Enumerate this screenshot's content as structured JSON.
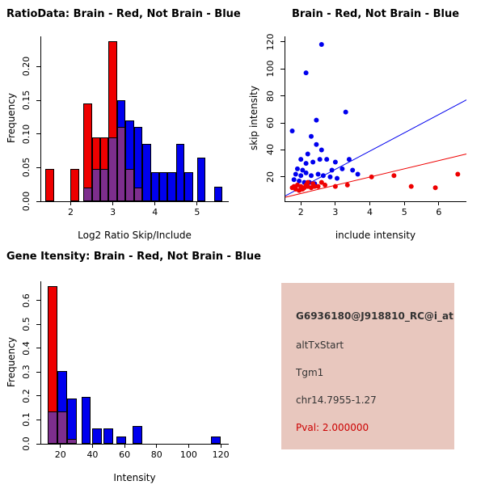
{
  "colors": {
    "red": "#EE0000",
    "blue": "#0000EE",
    "purple": "#7D2E8D",
    "axis": "#000000",
    "info_bg": "#E8C7BE",
    "info_text": "#333333",
    "pval_red": "#CC0000"
  },
  "chart_data": [
    {
      "id": "ratio-histogram",
      "type": "bar",
      "title": "RatioData: Brain - Red, Not Brain - Blue",
      "xlabel": "Log2 Ratio Skip/Include",
      "ylabel": "Frequency",
      "xlim": [
        1.3,
        5.75
      ],
      "ylim": [
        0,
        0.245
      ],
      "grid": false,
      "xticks": [
        2,
        3,
        4,
        5
      ],
      "yticks": [
        0.0,
        0.05,
        0.1,
        0.15,
        0.2
      ],
      "ytick_labels": [
        "0.00",
        "0.05",
        "0.10",
        "0.15",
        "0.20"
      ],
      "series": [
        {
          "name": "Brain",
          "color": "red"
        },
        {
          "name": "Not Brain",
          "color": "blue"
        },
        {
          "name": "Overlap",
          "color": "purple"
        }
      ],
      "bins": [
        {
          "x0": 1.4,
          "x1": 1.6,
          "red": 0.048,
          "blue": 0
        },
        {
          "x0": 2.0,
          "x1": 2.2,
          "red": 0.048,
          "blue": 0
        },
        {
          "x0": 2.3,
          "x1": 2.5,
          "red": 0.145,
          "blue": 0.02
        },
        {
          "x0": 2.5,
          "x1": 2.7,
          "red": 0.095,
          "blue": 0.048
        },
        {
          "x0": 2.7,
          "x1": 2.9,
          "red": 0.095,
          "blue": 0.048
        },
        {
          "x0": 2.9,
          "x1": 3.1,
          "red": 0.238,
          "blue": 0.095
        },
        {
          "x0": 3.1,
          "x1": 3.3,
          "red": 0.11,
          "blue": 0.15
        },
        {
          "x0": 3.3,
          "x1": 3.5,
          "red": 0.048,
          "blue": 0.12
        },
        {
          "x0": 3.5,
          "x1": 3.7,
          "red": 0.02,
          "blue": 0.11
        },
        {
          "x0": 3.7,
          "x1": 3.9,
          "red": 0,
          "blue": 0.085
        },
        {
          "x0": 3.9,
          "x1": 4.1,
          "red": 0,
          "blue": 0.043
        },
        {
          "x0": 4.1,
          "x1": 4.3,
          "red": 0,
          "blue": 0.043
        },
        {
          "x0": 4.3,
          "x1": 4.5,
          "red": 0,
          "blue": 0.043
        },
        {
          "x0": 4.5,
          "x1": 4.7,
          "red": 0,
          "blue": 0.085
        },
        {
          "x0": 4.7,
          "x1": 4.9,
          "red": 0,
          "blue": 0.043
        },
        {
          "x0": 5.0,
          "x1": 5.2,
          "red": 0,
          "blue": 0.065
        },
        {
          "x0": 5.4,
          "x1": 5.6,
          "red": 0,
          "blue": 0.022
        }
      ]
    },
    {
      "id": "intensity-scatter",
      "type": "scatter",
      "title": "Brain - Red, Not Brain - Blue",
      "xlabel": "include intensity",
      "ylabel": "skip intensity",
      "xlim": [
        1.55,
        6.8
      ],
      "ylim": [
        2,
        124
      ],
      "grid": false,
      "xticks": [
        2,
        3,
        4,
        5,
        6
      ],
      "yticks": [
        20,
        40,
        60,
        80,
        100,
        120
      ],
      "series": [
        {
          "name": "Not Brain",
          "color": "blue",
          "points": [
            [
              2.6,
              118
            ],
            [
              2.15,
              97
            ],
            [
              3.3,
              68
            ],
            [
              2.45,
              62
            ],
            [
              1.75,
              54
            ],
            [
              2.3,
              50
            ],
            [
              2.45,
              44
            ],
            [
              2.6,
              40
            ],
            [
              2.2,
              37
            ],
            [
              3.4,
              33
            ],
            [
              2.0,
              33
            ],
            [
              2.55,
              33
            ],
            [
              2.75,
              33
            ],
            [
              2.15,
              30
            ],
            [
              2.35,
              31
            ],
            [
              3.0,
              31
            ],
            [
              3.2,
              26
            ],
            [
              2.9,
              25
            ],
            [
              1.9,
              26
            ],
            [
              2.05,
              25
            ],
            [
              3.5,
              25
            ],
            [
              1.85,
              22
            ],
            [
              2.0,
              21
            ],
            [
              2.15,
              23
            ],
            [
              2.3,
              21
            ],
            [
              2.5,
              22
            ],
            [
              2.65,
              21
            ],
            [
              3.65,
              22
            ],
            [
              2.85,
              20
            ],
            [
              3.05,
              19
            ],
            [
              1.8,
              18
            ],
            [
              1.95,
              17
            ],
            [
              2.1,
              16
            ],
            [
              2.25,
              16
            ],
            [
              2.4,
              15
            ]
          ]
        },
        {
          "name": "Brain",
          "color": "red",
          "points": [
            [
              1.75,
              12
            ],
            [
              1.8,
              13
            ],
            [
              1.85,
              11
            ],
            [
              1.9,
              14
            ],
            [
              1.95,
              10
            ],
            [
              2.0,
              13
            ],
            [
              2.0,
              11
            ],
            [
              2.05,
              11
            ],
            [
              2.1,
              12
            ],
            [
              2.15,
              14
            ],
            [
              2.2,
              13
            ],
            [
              2.2,
              16
            ],
            [
              2.3,
              12
            ],
            [
              2.35,
              15
            ],
            [
              2.4,
              13
            ],
            [
              2.5,
              13
            ],
            [
              2.6,
              16
            ],
            [
              2.7,
              14
            ],
            [
              3.0,
              13
            ],
            [
              3.35,
              14
            ],
            [
              4.05,
              20
            ],
            [
              4.7,
              21
            ],
            [
              5.2,
              13
            ],
            [
              5.9,
              12
            ],
            [
              6.55,
              22
            ]
          ]
        }
      ],
      "lines": [
        {
          "name": "not-brain-fit",
          "color": "blue",
          "x1": 1.55,
          "y1": 6,
          "x2": 6.8,
          "y2": 77
        },
        {
          "name": "brain-fit",
          "color": "red",
          "x1": 1.55,
          "y1": 5,
          "x2": 6.8,
          "y2": 37
        }
      ]
    },
    {
      "id": "gene-intensity-histogram",
      "type": "bar",
      "title": "Gene Itensity: Brain - Red, Not Brain - Blue",
      "xlabel": "Intensity",
      "ylabel": "Frequency",
      "xlim": [
        8,
        125
      ],
      "ylim": [
        0,
        0.68
      ],
      "grid": false,
      "xticks": [
        20,
        40,
        60,
        80,
        100,
        120
      ],
      "yticks": [
        0.0,
        0.1,
        0.2,
        0.3,
        0.4,
        0.5,
        0.6
      ],
      "ytick_labels": [
        "0.0",
        "0.1",
        "0.2",
        "0.3",
        "0.4",
        "0.5",
        "0.6"
      ],
      "series": [
        {
          "name": "Brain",
          "color": "red"
        },
        {
          "name": "Not Brain",
          "color": "blue"
        },
        {
          "name": "Overlap",
          "color": "purple"
        }
      ],
      "bins": [
        {
          "x0": 12,
          "x1": 18,
          "red": 0.66,
          "blue": 0.135
        },
        {
          "x0": 18,
          "x1": 24,
          "red": 0.135,
          "blue": 0.305
        },
        {
          "x0": 24,
          "x1": 30,
          "red": 0.02,
          "blue": 0.19
        },
        {
          "x0": 33,
          "x1": 39,
          "red": 0,
          "blue": 0.195
        },
        {
          "x0": 40,
          "x1": 46,
          "red": 0,
          "blue": 0.065
        },
        {
          "x0": 47,
          "x1": 53,
          "red": 0,
          "blue": 0.065
        },
        {
          "x0": 55,
          "x1": 61,
          "red": 0,
          "blue": 0.03
        },
        {
          "x0": 65,
          "x1": 71,
          "red": 0,
          "blue": 0.075
        },
        {
          "x0": 114,
          "x1": 120,
          "red": 0,
          "blue": 0.03
        }
      ]
    }
  ],
  "info_panel": {
    "probe_id": "G6936180@J918810_RC@i_at",
    "event_type": "altTxStart",
    "gene_name": "Tgm1",
    "location": "chr14.7955-1.27",
    "pval": "Pval: 2.000000"
  }
}
